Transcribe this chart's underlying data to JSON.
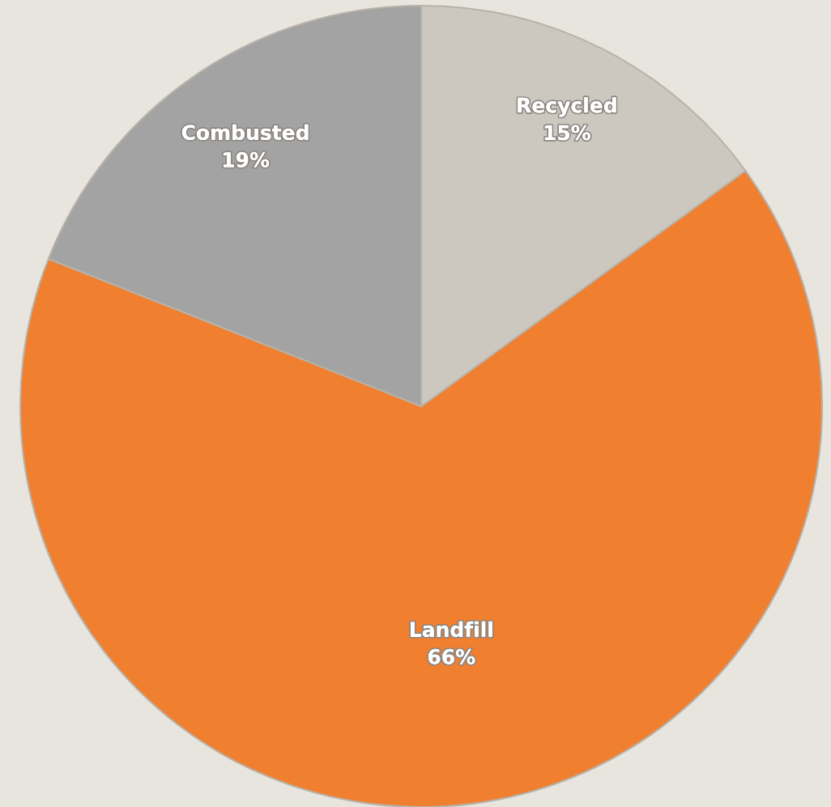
{
  "chart_data": {
    "type": "pie",
    "categories": [
      "Recycled",
      "Landfill",
      "Combusted"
    ],
    "values": [
      15,
      66,
      19
    ],
    "value_labels": [
      "15%",
      "66%",
      "19%"
    ],
    "colors": [
      "#cdc8bf",
      "#f07f30",
      "#a3a3a3"
    ]
  }
}
